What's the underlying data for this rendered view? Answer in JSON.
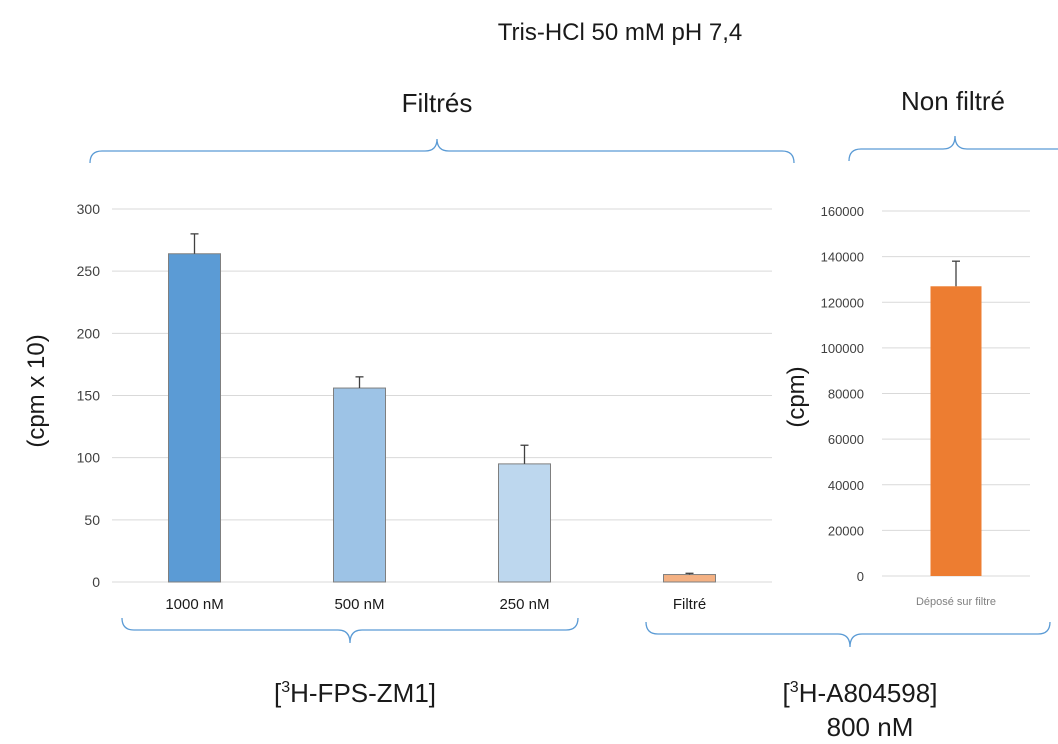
{
  "figure": {
    "title": "Tris-HCl 50 mM pH 7,4",
    "group_left_label": "Filtrés",
    "group_right_label": "Non filtré",
    "compound_left_label": "FPS-ZM1]",
    "compound_left_prefix": "[",
    "compound_left_sup": "3",
    "compound_left_suffix": "H-FPS-ZM1]",
    "compound_right_prefix": "[",
    "compound_right_sup": "3",
    "compound_right_suffix": "H-A804598]",
    "compound_right_conc": "800 nM"
  },
  "colors": {
    "bracket": "#5b9bd5",
    "grid": "#d9d9d9",
    "axis_text": "#404040",
    "error_bar": "#404040"
  },
  "chart_data": [
    {
      "type": "bar",
      "ylabel": "(cpm x 10)",
      "ylim": [
        0,
        300
      ],
      "yticks": [
        0,
        50,
        100,
        150,
        200,
        250,
        300
      ],
      "grid": true,
      "categories": [
        "1000 nM",
        "500 nM",
        "250 nM",
        "Filtré"
      ],
      "values": [
        264,
        156,
        95,
        6
      ],
      "errors": [
        16,
        9,
        15,
        1
      ],
      "colors": [
        "#5b9bd5",
        "#9dc3e6",
        "#bdd7ee",
        "#f4b183"
      ]
    },
    {
      "type": "bar",
      "ylabel": "(cpm)",
      "ylim": [
        0,
        160000
      ],
      "yticks": [
        0,
        20000,
        40000,
        60000,
        80000,
        100000,
        120000,
        140000,
        160000
      ],
      "grid": true,
      "categories": [
        "Déposé sur filtre"
      ],
      "values": [
        127000
      ],
      "errors": [
        11000
      ],
      "colors": [
        "#ed7d31"
      ]
    }
  ]
}
